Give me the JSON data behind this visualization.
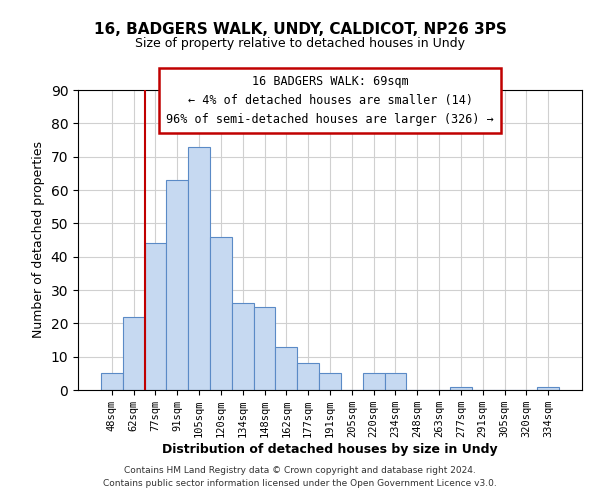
{
  "title": "16, BADGERS WALK, UNDY, CALDICOT, NP26 3PS",
  "subtitle": "Size of property relative to detached houses in Undy",
  "xlabel": "Distribution of detached houses by size in Undy",
  "ylabel": "Number of detached properties",
  "bar_labels": [
    "48sqm",
    "62sqm",
    "77sqm",
    "91sqm",
    "105sqm",
    "120sqm",
    "134sqm",
    "148sqm",
    "162sqm",
    "177sqm",
    "191sqm",
    "205sqm",
    "220sqm",
    "234sqm",
    "248sqm",
    "263sqm",
    "277sqm",
    "291sqm",
    "305sqm",
    "320sqm",
    "334sqm"
  ],
  "bar_values": [
    5,
    22,
    44,
    63,
    73,
    46,
    26,
    25,
    13,
    8,
    5,
    0,
    5,
    5,
    0,
    0,
    1,
    0,
    0,
    0,
    1
  ],
  "bar_color": "#c6d9f1",
  "bar_edge_color": "#5a8ac6",
  "reference_line_color": "#c00000",
  "reference_line_bar_index": 1,
  "ylim": [
    0,
    90
  ],
  "yticks": [
    0,
    10,
    20,
    30,
    40,
    50,
    60,
    70,
    80,
    90
  ],
  "annotation_title": "16 BADGERS WALK: 69sqm",
  "annotation_line1": "← 4% of detached houses are smaller (14)",
  "annotation_line2": "96% of semi-detached houses are larger (326) →",
  "annotation_box_edge": "#c00000",
  "footer_line1": "Contains HM Land Registry data © Crown copyright and database right 2024.",
  "footer_line2": "Contains public sector information licensed under the Open Government Licence v3.0."
}
